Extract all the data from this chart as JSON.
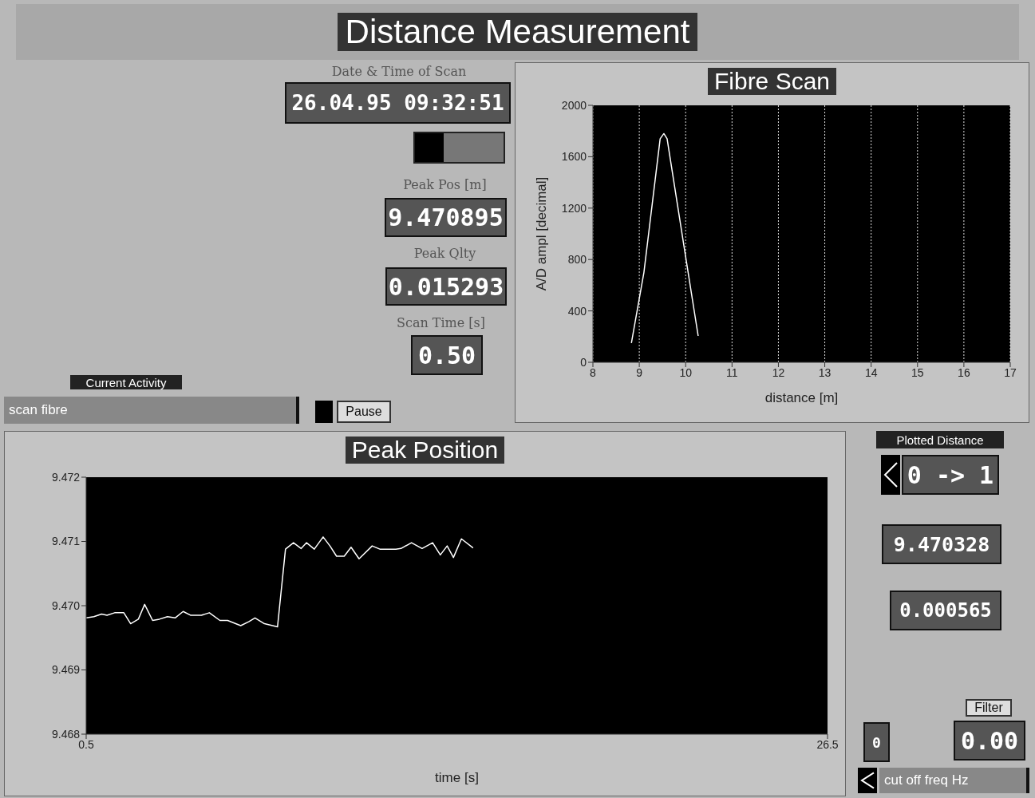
{
  "chart_data": [
    {
      "type": "other",
      "title": "Distance Measurement",
      "annotations": [
        "Date & Time of Scan",
        "26.04.95 09:32:51",
        "Peak Pos [m]",
        "9.470895",
        "Peak Qlty",
        "0.015293",
        "Scan Time [s]",
        "0.50",
        "Current Activity",
        "scan fibre",
        "Pause"
      ]
    },
    {
      "type": "line",
      "title": "Fibre Scan",
      "xlabel": "distance [m]",
      "ylabel": "A/D ampl [decimal]",
      "x": [
        8.83,
        9.1,
        9.45,
        9.53,
        9.6,
        10,
        10.27
      ],
      "values": [
        150,
        700,
        1740,
        1780,
        1740,
        820,
        205
      ],
      "color": "#ffffff",
      "xlim": [
        8,
        17
      ],
      "ylim": [
        0,
        2000
      ],
      "xticks": [
        8,
        9,
        10,
        11,
        12,
        13,
        14,
        15,
        16,
        17
      ],
      "yticks": [
        0,
        400,
        800,
        1200,
        1600,
        2000
      ],
      "grid": "x"
    },
    {
      "type": "line",
      "title": "Peak Position",
      "xlabel": "time [s]",
      "x": [
        0.5,
        0.77,
        1.04,
        1.23,
        1.5,
        1.82,
        2.06,
        2.33,
        2.55,
        2.83,
        3.07,
        3.35,
        3.62,
        3.9,
        4.17,
        4.54,
        4.82,
        5.19,
        5.46,
        5.92,
        6.2,
        6.42,
        6.75,
        7.21,
        7.49,
        7.77,
        8.04,
        8.23,
        8.5,
        8.81,
        9.05,
        9.28,
        9.55,
        9.79,
        10.07,
        10.53,
        10.8,
        11.36,
        11.54,
        11.91,
        12.28,
        12.65,
        12.92,
        13.16,
        13.38,
        13.66,
        14.07
      ],
      "values": [
        9.46981,
        9.46983,
        9.46987,
        9.46985,
        9.46989,
        9.46989,
        9.46972,
        9.46979,
        9.47002,
        9.46977,
        9.46979,
        9.46983,
        9.46981,
        9.46991,
        9.46985,
        9.46985,
        9.46989,
        9.46977,
        9.46977,
        9.46969,
        9.46975,
        9.46981,
        9.46972,
        9.46967,
        9.47088,
        9.47098,
        9.47089,
        9.47098,
        9.47088,
        9.47107,
        9.47093,
        9.47077,
        9.47077,
        9.47091,
        9.47073,
        9.47093,
        9.47088,
        9.47088,
        9.47089,
        9.47098,
        9.47089,
        9.47098,
        9.47079,
        9.47093,
        9.47075,
        9.47104,
        9.4709
      ],
      "color": "#ffffff",
      "xlim": [
        0.5,
        26.5
      ],
      "ylim": [
        9.468,
        9.472
      ],
      "xticks": [
        0.5,
        26.5
      ],
      "yticks": [
        9.468,
        9.469,
        {
          "value": 9.47,
          "label": "9.470"
        },
        9.471,
        9.472
      ],
      "grid": false
    },
    {
      "type": "other",
      "annotations": [
        "Plotted Distance",
        "0 -> 1",
        "9.470328",
        "0.000565",
        "Filter",
        "0",
        "0.00",
        "cut off freq Hz"
      ]
    }
  ]
}
